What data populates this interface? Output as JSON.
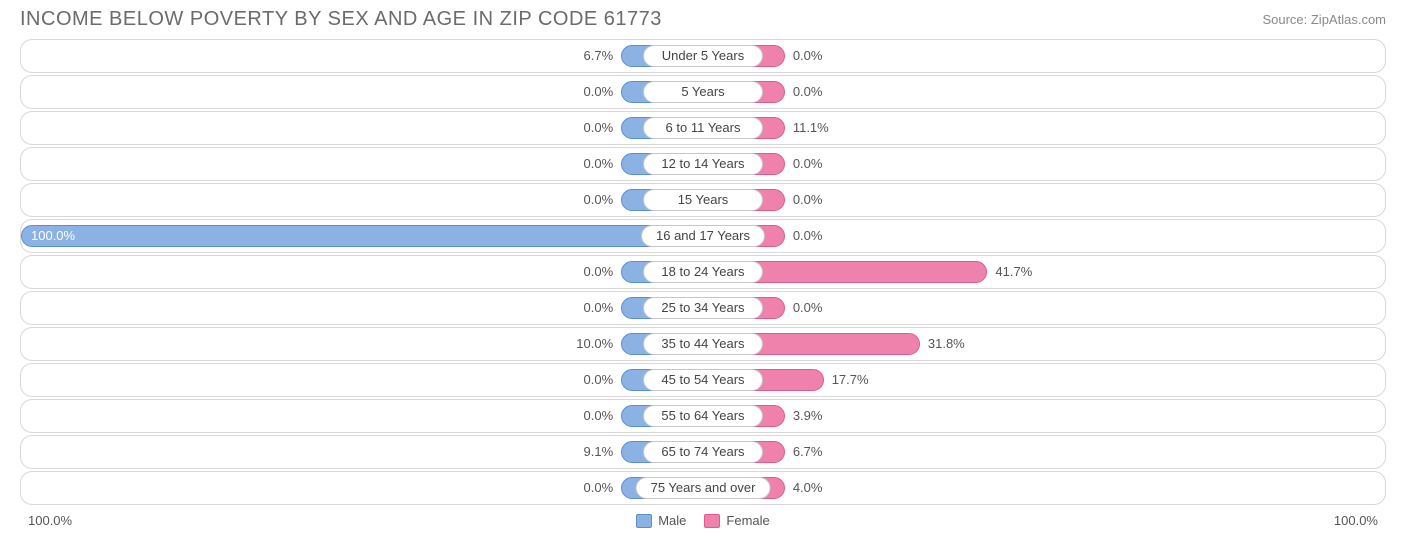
{
  "title": "INCOME BELOW POVERTY BY SEX AND AGE IN ZIP CODE 61773",
  "source": "Source: ZipAtlas.com",
  "chart": {
    "type": "diverging-bar",
    "male_color": "#8bb2e3",
    "male_border": "#5a8fd0",
    "female_color": "#ee82ac",
    "female_border": "#e05a8f",
    "row_border": "#d8d8d8",
    "background": "#ffffff",
    "label_pill_border": "#c7c7c7",
    "axis_max": 100.0,
    "axis_left_label": "100.0%",
    "axis_right_label": "100.0%",
    "default_bar_pct": 12.0,
    "center_pill_half_pct": 9.0,
    "rows": [
      {
        "label": "Under 5 Years",
        "male": 6.7,
        "female": 0.0
      },
      {
        "label": "5 Years",
        "male": 0.0,
        "female": 0.0
      },
      {
        "label": "6 to 11 Years",
        "male": 0.0,
        "female": 11.1
      },
      {
        "label": "12 to 14 Years",
        "male": 0.0,
        "female": 0.0
      },
      {
        "label": "15 Years",
        "male": 0.0,
        "female": 0.0
      },
      {
        "label": "16 and 17 Years",
        "male": 100.0,
        "female": 0.0
      },
      {
        "label": "18 to 24 Years",
        "male": 0.0,
        "female": 41.7
      },
      {
        "label": "25 to 34 Years",
        "male": 0.0,
        "female": 0.0
      },
      {
        "label": "35 to 44 Years",
        "male": 10.0,
        "female": 31.8
      },
      {
        "label": "45 to 54 Years",
        "male": 0.0,
        "female": 17.7
      },
      {
        "label": "55 to 64 Years",
        "male": 0.0,
        "female": 3.9
      },
      {
        "label": "65 to 74 Years",
        "male": 9.1,
        "female": 6.7
      },
      {
        "label": "75 Years and over",
        "male": 0.0,
        "female": 4.0
      }
    ],
    "legend": {
      "male": "Male",
      "female": "Female"
    }
  }
}
